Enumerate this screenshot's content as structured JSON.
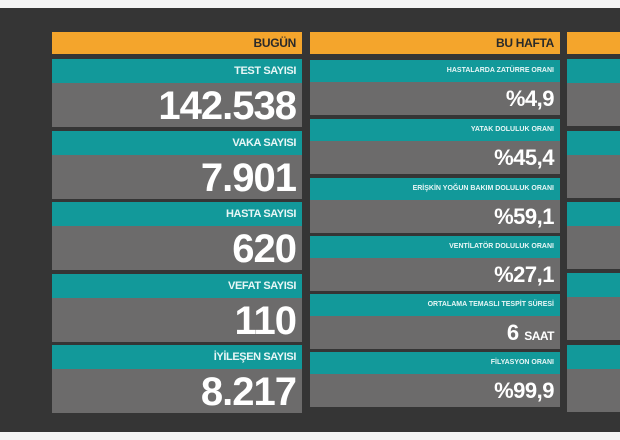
{
  "today": {
    "header": "BUGÜN",
    "items": [
      {
        "label": "TEST SAYISI",
        "value": "142.538"
      },
      {
        "label": "VAKA SAYISI",
        "value": "7.901"
      },
      {
        "label": "HASTA SAYISI",
        "value": "620"
      },
      {
        "label": "VEFAT SAYISI",
        "value": "110"
      },
      {
        "label": "İYİLEŞEN SAYISI",
        "value": "8.217"
      }
    ]
  },
  "this_week": {
    "header": "BU HAFTA",
    "items": [
      {
        "label": "HASTALARDA ZATÜRRE ORANI",
        "value": "%4,9"
      },
      {
        "label": "YATAK DOLULUK ORANI",
        "value": "%45,4"
      },
      {
        "label": "ERİŞKİN YOĞUN BAKIM DOLULUK ORANI",
        "value": "%59,1"
      },
      {
        "label": "VENTİLATÖR DOLULUK ORANI",
        "value": "%27,1"
      },
      {
        "label": "ORTALAMA TEMASLI TESPİT SÜRESİ",
        "value": "6",
        "unit": "SAAT"
      },
      {
        "label": "FİLYASYON ORANI",
        "value": "%99,9"
      }
    ]
  },
  "colors": {
    "header": "#f4a52c",
    "label_band": "#12999a",
    "value_band": "#6c6b6b",
    "background": "#353535"
  }
}
